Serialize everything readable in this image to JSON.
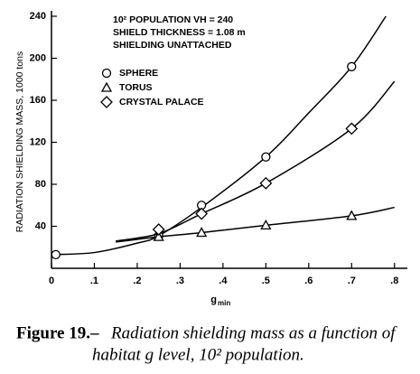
{
  "chart_data": {
    "type": "line",
    "annotation": [
      "10² POPULATION VH = 240",
      "SHIELD THICKNESS  =   1.08 m",
      "SHIELDING UNATTACHED"
    ],
    "xlabel": "g",
    "xlabel_sub": "min",
    "ylabel": "RADIATION SHIELDING MASS, 1000 tons",
    "caption": {
      "label": "Figure 19.–",
      "line1": "Radiation shielding mass as a function of",
      "line2": "habitat g level, 10² population."
    },
    "xlim": [
      0,
      0.83
    ],
    "ylim": [
      0,
      240
    ],
    "xticks": [
      0,
      {
        "value": 0.1,
        "label": ".1"
      },
      {
        "value": 0.2,
        "label": ".2"
      },
      {
        "value": 0.3,
        "label": ".3"
      },
      {
        "value": 0.4,
        "label": ".4"
      },
      {
        "value": 0.5,
        "label": ".5"
      },
      {
        "value": 0.6,
        "label": ".6"
      },
      {
        "value": 0.7,
        "label": ".7"
      },
      {
        "value": 0.8,
        "label": ".8"
      }
    ],
    "yticks": [
      40,
      80,
      120,
      160,
      200,
      240
    ],
    "color": "#000000",
    "series": [
      {
        "name": "SPHERE",
        "marker": "circle",
        "x": [
          0.01,
          0.25,
          0.35,
          0.5,
          0.7
        ],
        "values": [
          13,
          31,
          60,
          106,
          192
        ],
        "curve": {
          "x": [
            0,
            0.1,
            0.2,
            0.25,
            0.35,
            0.5,
            0.6,
            0.7,
            0.78
          ],
          "values": [
            13,
            15,
            24,
            31,
            58,
            106,
            148,
            192,
            240
          ]
        }
      },
      {
        "name": "TORUS",
        "marker": "triangle",
        "x": [
          0.25,
          0.35,
          0.5,
          0.7
        ],
        "values": [
          30,
          34,
          41,
          50
        ],
        "curve": {
          "x": [
            0.15,
            0.25,
            0.35,
            0.5,
            0.7,
            0.8
          ],
          "values": [
            25,
            30,
            34,
            41,
            50,
            58
          ]
        }
      },
      {
        "name": "CRYSTAL PALACE",
        "marker": "diamond",
        "x": [
          0.25,
          0.35,
          0.5,
          0.7
        ],
        "values": [
          37,
          52,
          81,
          133
        ],
        "curve": {
          "x": [
            0.15,
            0.25,
            0.35,
            0.5,
            0.7,
            0.8
          ],
          "values": [
            26,
            33,
            52,
            81,
            133,
            178
          ]
        }
      }
    ]
  }
}
